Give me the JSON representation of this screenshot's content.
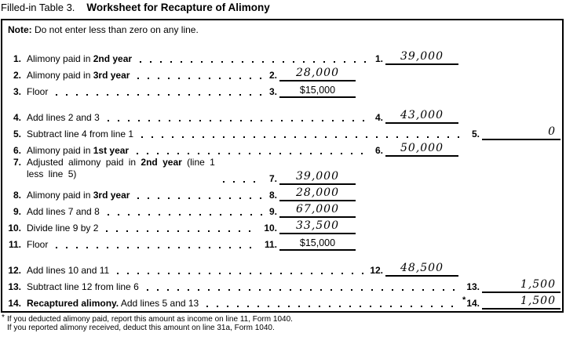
{
  "header": {
    "prefix": "Filled-in Table 3.",
    "title": "Worksheet for Recapture of Alimony"
  },
  "note": {
    "label": "Note:",
    "text": " Do not enter less than zero on any line."
  },
  "rows": [
    {
      "num": "1.",
      "segments": [
        {
          "t": "Alimony paid in "
        },
        {
          "t": "2nd year",
          "b": true
        }
      ],
      "entry": {
        "label": "1.",
        "col": "middle",
        "value": "39,000",
        "style": "hand"
      }
    },
    {
      "num": "2.",
      "segments": [
        {
          "t": "Alimony paid in "
        },
        {
          "t": "3rd year",
          "b": true
        }
      ],
      "entry": {
        "label": "2.",
        "col": "inner",
        "value": "28,000",
        "style": "hand"
      }
    },
    {
      "num": "3.",
      "segments": [
        {
          "t": "Floor"
        }
      ],
      "entry": {
        "label": "3.",
        "col": "inner",
        "value": "$15,000",
        "style": "print"
      }
    },
    {
      "num": "4.",
      "gap": true,
      "segments": [
        {
          "t": "Add lines 2 and 3"
        }
      ],
      "entry": {
        "label": "4.",
        "col": "middle",
        "value": "43,000",
        "style": "hand"
      }
    },
    {
      "num": "5.",
      "segments": [
        {
          "t": "Subtract line 4 from line 1"
        }
      ],
      "entry": {
        "label": "5.",
        "col": "right",
        "value": "0",
        "style": "hand"
      }
    },
    {
      "num": "6.",
      "segments": [
        {
          "t": "Alimony paid in "
        },
        {
          "t": "1st year",
          "b": true
        }
      ],
      "entry": {
        "label": "6.",
        "col": "middle",
        "value": "50,000",
        "style": "hand"
      }
    },
    {
      "num": "7.",
      "two": true,
      "segments": [
        {
          "t": "Adjusted alimony paid in "
        },
        {
          "t": "2nd year",
          "b": true
        },
        {
          "t": " (line 1"
        },
        {
          "t": "less line 5)",
          "br": true
        }
      ],
      "entry": {
        "label": "7.",
        "col": "inner",
        "value": "39,000",
        "style": "hand"
      }
    },
    {
      "num": "8.",
      "segments": [
        {
          "t": "Alimony paid in "
        },
        {
          "t": "3rd year",
          "b": true
        }
      ],
      "entry": {
        "label": "8.",
        "col": "inner",
        "value": "28,000",
        "style": "hand"
      }
    },
    {
      "num": "9.",
      "segments": [
        {
          "t": "Add lines 7 and 8"
        }
      ],
      "entry": {
        "label": "9.",
        "col": "inner",
        "value": "67,000",
        "style": "hand"
      }
    },
    {
      "num": "10.",
      "segments": [
        {
          "t": "Divide line 9 by 2"
        }
      ],
      "entry": {
        "label": "10.",
        "col": "inner",
        "value": "33,500",
        "style": "hand"
      }
    },
    {
      "num": "11.",
      "segments": [
        {
          "t": "Floor"
        }
      ],
      "entry": {
        "label": "11.",
        "col": "inner",
        "value": "$15,000",
        "style": "print"
      }
    },
    {
      "num": "12.",
      "gap": true,
      "segments": [
        {
          "t": "Add lines 10 and 11"
        }
      ],
      "entry": {
        "label": "12.",
        "col": "middle",
        "value": "48,500",
        "style": "hand"
      }
    },
    {
      "num": "13.",
      "segments": [
        {
          "t": "Subtract line 12 from line 6"
        }
      ],
      "entry": {
        "label": "13.",
        "col": "right",
        "value": "1,500",
        "style": "hand"
      }
    },
    {
      "num": "14.",
      "segments": [
        {
          "t": "Recaptured alimony.",
          "b": true
        },
        {
          "t": " Add lines 5 and 13"
        }
      ],
      "entry": {
        "label": "14.",
        "star": "*",
        "col": "right",
        "value": "1,500",
        "style": "hand"
      }
    }
  ],
  "footnotes": {
    "marker": "*",
    "line1": "If you deducted alimony paid, report this amount as income on line 11, Form 1040.",
    "line2": "If you reported alimony received, deduct this amount on line 31a, Form 1040."
  }
}
